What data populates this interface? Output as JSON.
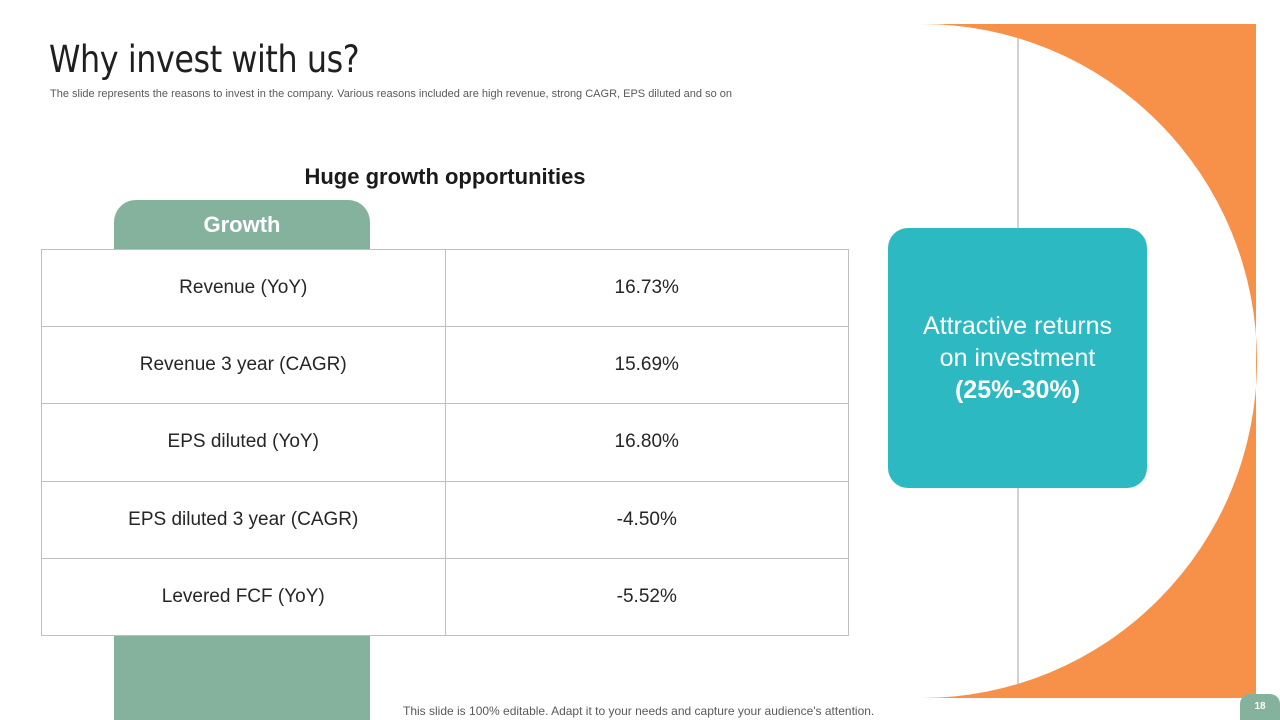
{
  "slide": {
    "title": "Why invest with us?",
    "subtitle": "The slide represents the reasons to invest in the company. Various reasons included are high revenue,  strong CAGR, EPS diluted and so on"
  },
  "growth_section": {
    "heading": "Huge growth opportunities",
    "tab_label": "Growth",
    "rows": [
      {
        "metric": "Revenue (YoY)",
        "value": "16.73%"
      },
      {
        "metric": "Revenue 3 year (CAGR)",
        "value": "15.69%"
      },
      {
        "metric": "EPS diluted (YoY)",
        "value": "16.80%"
      },
      {
        "metric": "EPS diluted 3 year (CAGR)",
        "value": "-4.50%"
      },
      {
        "metric": "Levered FCF (YoY)",
        "value": "-5.52%"
      }
    ]
  },
  "roi_card": {
    "line1": "Attractive returns",
    "line2": "on investment",
    "value": "(25%-30%)"
  },
  "footer": {
    "note": "This slide is 100% editable. Adapt it to your needs and capture your audience's attention.",
    "page_number": "18"
  },
  "colors": {
    "accent_green": "#84b29c",
    "accent_teal": "#2cb9c2",
    "accent_orange": "#f7914a"
  }
}
